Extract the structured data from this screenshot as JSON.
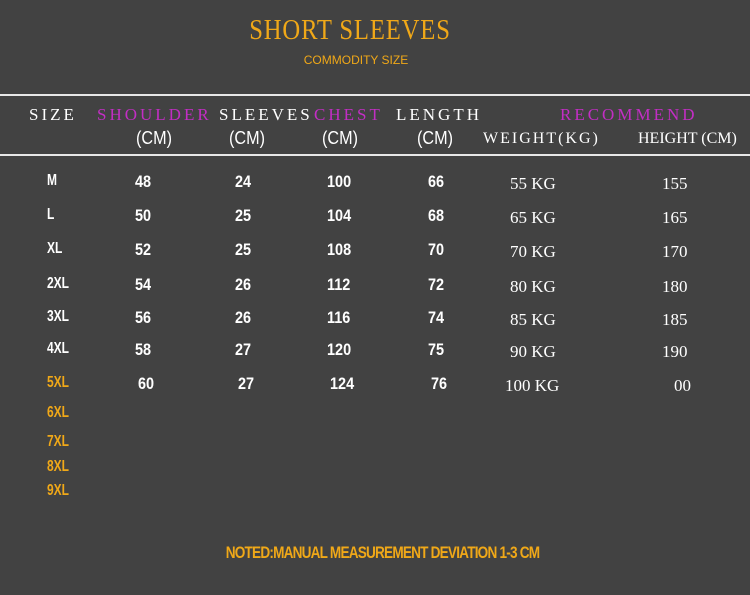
{
  "title": "SHORT SLEEVES",
  "subtitle": "COMMODITY SIZE",
  "headers": {
    "size": "SIZE",
    "shoulder": "SHOULDER",
    "sleeves": "SLEEVES",
    "chest": "CHEST",
    "length": "LENGTH",
    "recommend": "RECOMMEND",
    "cm": "(CM)",
    "weight": "WEIGHT(KG)",
    "height": "HEIGHT (CM)"
  },
  "rows": [
    {
      "size": "M",
      "shoulder": "48",
      "sleeves": "24",
      "chest": "100",
      "length": "66",
      "weight": "55 KG",
      "height": "155"
    },
    {
      "size": "L",
      "shoulder": "50",
      "sleeves": "25",
      "chest": "104",
      "length": "68",
      "weight": "65 KG",
      "height": "165"
    },
    {
      "size": "XL",
      "shoulder": "52",
      "sleeves": "25",
      "chest": "108",
      "length": "70",
      "weight": "70 KG",
      "height": "170"
    },
    {
      "size": "2XL",
      "shoulder": "54",
      "sleeves": "26",
      "chest": "112",
      "length": "72",
      "weight": "80 KG",
      "height": "180"
    },
    {
      "size": "3XL",
      "shoulder": "56",
      "sleeves": "26",
      "chest": "116",
      "length": "74",
      "weight": "85 KG",
      "height": "185"
    },
    {
      "size": "4XL",
      "shoulder": "58",
      "sleeves": "27",
      "chest": "120",
      "length": "75",
      "weight": "90 KG",
      "height": "190"
    },
    {
      "size": "5XL",
      "shoulder": "60",
      "sleeves": "27",
      "chest": "124",
      "length": "76",
      "weight": "100 KG",
      "height": "00"
    }
  ],
  "extra_sizes": [
    "6XL",
    "7XL",
    "8XL",
    "9XL"
  ],
  "note": "NOTED:MANUAL MEASUREMENT DEVIATION 1-3 CM",
  "colors": {
    "background": "#424242",
    "accent": "#f0a818",
    "header_highlight": "#c22ec4"
  }
}
